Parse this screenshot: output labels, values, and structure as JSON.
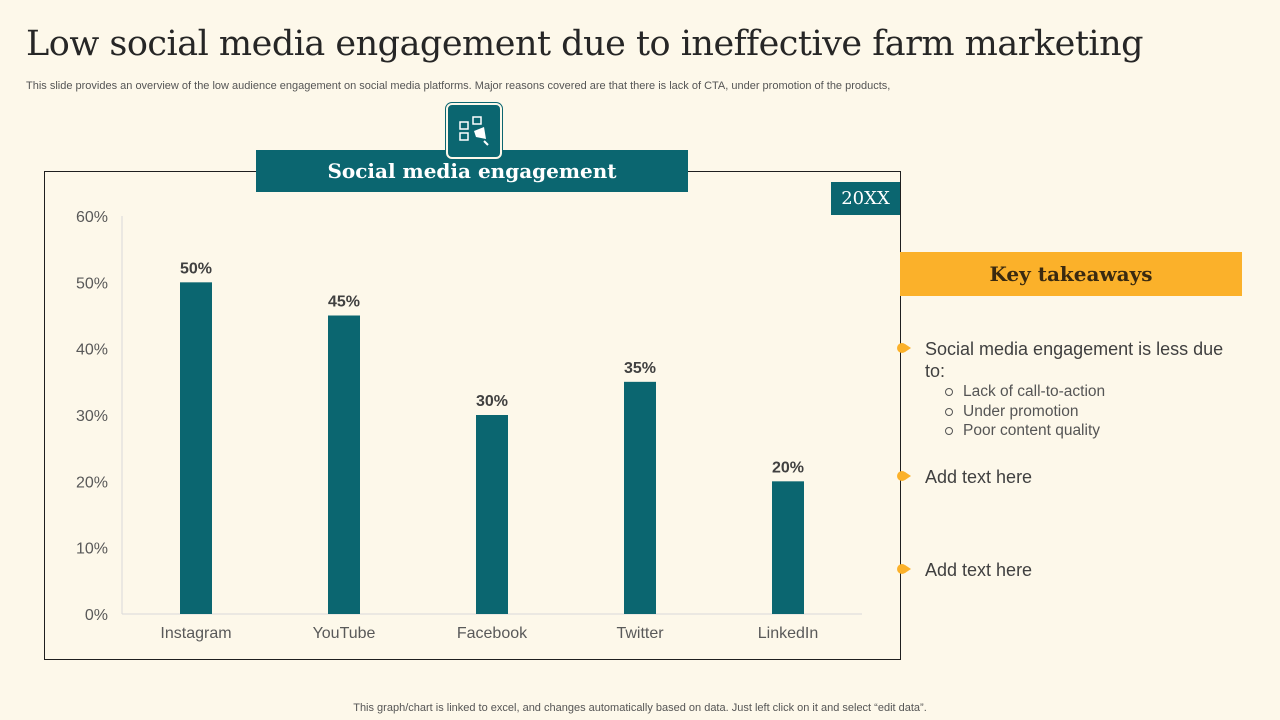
{
  "title": "Low social media engagement due to ineffective farm marketing",
  "subtitle": "This slide provides an overview of the low audience engagement on social media platforms. Major reasons covered are that there is lack of CTA,  under promotion of the products,",
  "chart_header": "Social media engagement",
  "year_badge": "20XX",
  "takeaways": {
    "header": "Key takeaways",
    "items": [
      {
        "text": "Social media engagement is less due to:",
        "sub": [
          "Lack of call-to-action",
          "Under promotion",
          "Poor content quality"
        ]
      },
      {
        "text": "Add text here"
      },
      {
        "text": "Add text here"
      }
    ]
  },
  "footer": "This graph/chart is linked to excel,  and changes automatically based on data. Just left click on it and select “edit data”.",
  "colors": {
    "bar": "#0b6670",
    "accent": "#fbb12a",
    "background": "#fdf8ea"
  },
  "chart_data": {
    "type": "bar",
    "title": "Social media engagement",
    "categories": [
      "Instagram",
      "YouTube",
      "Facebook",
      "Twitter",
      "LinkedIn"
    ],
    "values": [
      50,
      45,
      30,
      35,
      20
    ],
    "data_labels": [
      "50%",
      "45%",
      "30%",
      "35%",
      "20%"
    ],
    "yticks": [
      "0%",
      "10%",
      "20%",
      "30%",
      "40%",
      "50%",
      "60%"
    ],
    "ylim": [
      0,
      60
    ],
    "xlabel": "",
    "ylabel": "",
    "grid": false,
    "legend": "none"
  }
}
